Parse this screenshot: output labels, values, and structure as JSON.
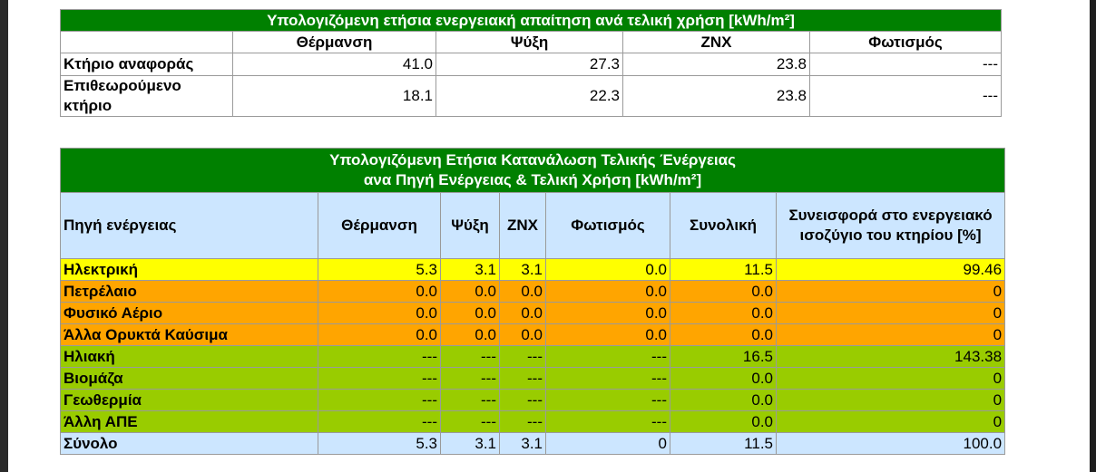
{
  "demand_table": {
    "title": "Υπολογιζόμενη ετήσια ενεργειακή απαίτηση ανά τελική χρήση [kWh/m²]",
    "columns": [
      "Θέρμανση",
      "Ψύξη",
      "ZNX",
      "Φωτισμός"
    ],
    "rows": [
      {
        "label": "Κτήριο αναφοράς",
        "values": [
          "41.0",
          "27.3",
          "23.8",
          "---"
        ]
      },
      {
        "label": "Επιθεωρούμενο κτήριο",
        "values": [
          "18.1",
          "22.3",
          "23.8",
          "---"
        ]
      }
    ]
  },
  "consumption_table": {
    "title_line1": "Υπολογιζόμενη Ετήσια Κατανάλωση Τελικής Ένέργειας",
    "title_line2": "ανα Πηγή Ενέργειας & Τελική Χρήση [kWh/m²]",
    "columns": [
      "Πηγή ενέργειας",
      "Θέρμανση",
      "Ψύξη",
      "ZNX",
      "Φωτισμός",
      "Συνολική",
      "Συνεισφορά στο ενεργειακό ισοζύγιο του κτηρίου [%]"
    ],
    "rows": [
      {
        "label": "Ηλεκτρική",
        "values": [
          "5.3",
          "3.1",
          "3.1",
          "0.0",
          "11.5",
          "99.46"
        ],
        "color": "#ffff00"
      },
      {
        "label": "Πετρέλαιο",
        "values": [
          "0.0",
          "0.0",
          "0.0",
          "0.0",
          "0.0",
          "0"
        ],
        "color": "#ffa500"
      },
      {
        "label": "Φυσικό Αέριο",
        "values": [
          "0.0",
          "0.0",
          "0.0",
          "0.0",
          "0.0",
          "0"
        ],
        "color": "#ffa500"
      },
      {
        "label": "Άλλα Ορυκτά Καύσιμα",
        "values": [
          "0.0",
          "0.0",
          "0.0",
          "0.0",
          "0.0",
          "0"
        ],
        "color": "#ffa500"
      },
      {
        "label": "Ηλιακή",
        "values": [
          "---",
          "---",
          "---",
          "---",
          "16.5",
          "143.38"
        ],
        "color": "#99cc00"
      },
      {
        "label": "Βιομάζα",
        "values": [
          "---",
          "---",
          "---",
          "---",
          "0.0",
          "0"
        ],
        "color": "#99cc00"
      },
      {
        "label": "Γεωθερμία",
        "values": [
          "---",
          "---",
          "---",
          "---",
          "0.0",
          "0"
        ],
        "color": "#99cc00"
      },
      {
        "label": "Άλλη ΑΠΕ",
        "values": [
          "---",
          "---",
          "---",
          "---",
          "0.0",
          "0"
        ],
        "color": "#99cc00"
      },
      {
        "label": "Σύνολο",
        "values": [
          "5.3",
          "3.1",
          "3.1",
          "0",
          "11.5",
          "100.0"
        ],
        "color": "#cce6ff"
      }
    ]
  }
}
